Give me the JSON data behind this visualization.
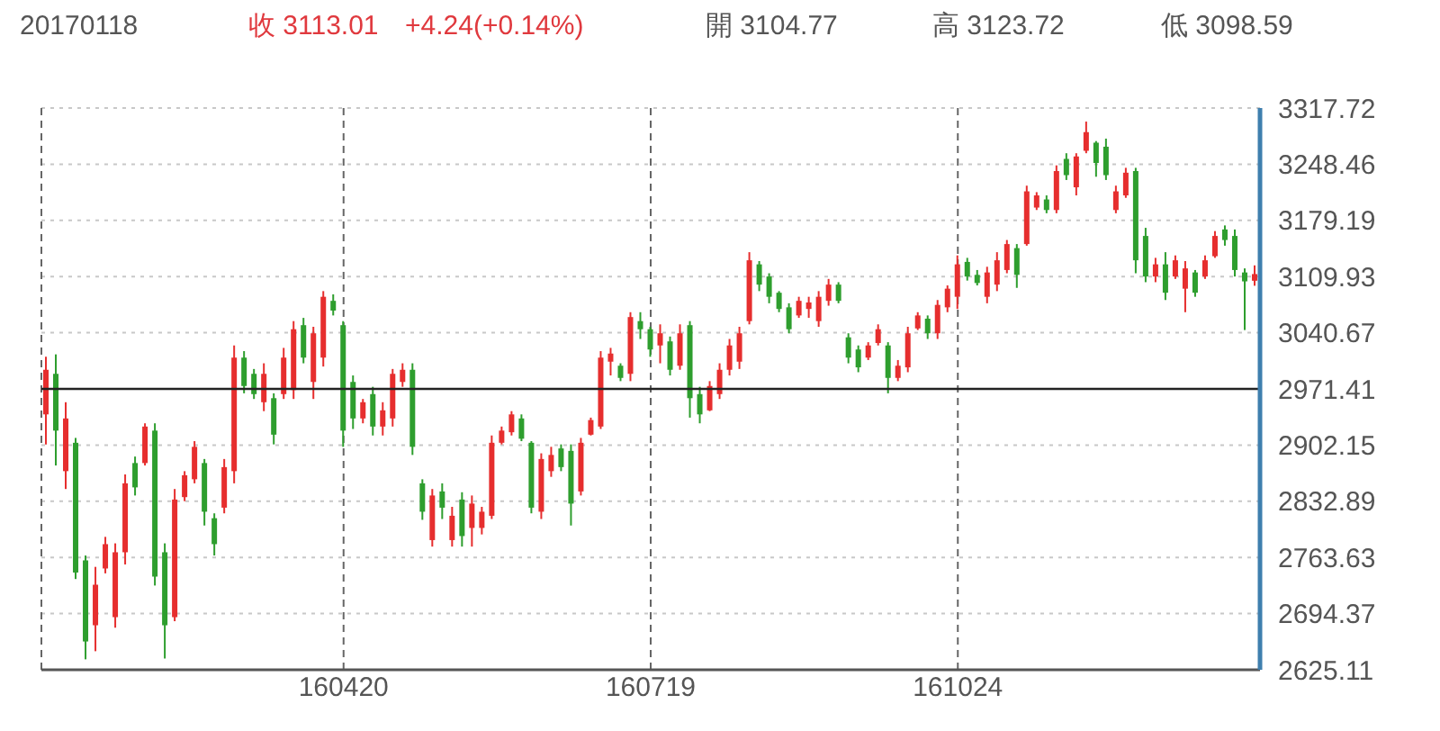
{
  "chart_data": {
    "type": "candlestick",
    "annotations": [
      "20170118",
      "收 3113.01",
      "+4.24(+0.14%)",
      "開 3104.77",
      "高 3123.72",
      "低 3098.59"
    ],
    "categories": [
      null,
      null,
      null,
      null,
      null,
      null,
      null,
      null,
      null,
      null,
      null,
      null,
      null,
      null,
      null,
      null,
      null,
      null,
      null,
      null,
      null,
      null,
      null,
      null,
      null,
      null,
      null,
      null,
      null,
      null,
      "160420",
      null,
      null,
      null,
      null,
      null,
      null,
      null,
      null,
      null,
      null,
      null,
      null,
      null,
      null,
      null,
      null,
      null,
      null,
      null,
      null,
      null,
      null,
      null,
      null,
      null,
      null,
      null,
      null,
      null,
      null,
      "160719",
      null,
      null,
      null,
      null,
      null,
      null,
      null,
      null,
      null,
      null,
      null,
      null,
      null,
      null,
      null,
      null,
      null,
      null,
      null,
      null,
      null,
      null,
      null,
      null,
      null,
      null,
      null,
      null,
      null,
      null,
      "161024",
      null,
      null,
      null,
      null,
      null,
      null,
      null,
      null,
      null,
      null,
      null,
      null,
      null,
      null,
      null,
      null,
      null,
      null,
      null,
      null,
      null,
      null,
      null,
      null,
      null,
      null,
      null,
      null,
      null,
      null
    ],
    "ohlc": [
      [
        2940,
        3011,
        2903,
        2995
      ],
      [
        2990,
        3014,
        2877,
        2920
      ],
      [
        2870,
        2955,
        2848,
        2935
      ],
      [
        2905,
        2911,
        2737,
        2745
      ],
      [
        2760,
        2766,
        2638,
        2660
      ],
      [
        2680,
        2752,
        2648,
        2730
      ],
      [
        2750,
        2789,
        2744,
        2780
      ],
      [
        2690,
        2781,
        2677,
        2770
      ],
      [
        2770,
        2866,
        2755,
        2855
      ],
      [
        2880,
        2888,
        2840,
        2850
      ],
      [
        2880,
        2929,
        2877,
        2925
      ],
      [
        2920,
        2929,
        2729,
        2740
      ],
      [
        2770,
        2781,
        2639,
        2680
      ],
      [
        2690,
        2848,
        2685,
        2835
      ],
      [
        2838,
        2870,
        2833,
        2865
      ],
      [
        2860,
        2907,
        2855,
        2900
      ],
      [
        2880,
        2885,
        2803,
        2820
      ],
      [
        2812,
        2818,
        2766,
        2780
      ],
      [
        2825,
        2885,
        2818,
        2875
      ],
      [
        2870,
        3025,
        2855,
        3010
      ],
      [
        3010,
        3018,
        2966,
        2975
      ],
      [
        2990,
        2996,
        2959,
        2965
      ],
      [
        2955,
        3003,
        2944,
        2990
      ],
      [
        2960,
        2966,
        2903,
        2915
      ],
      [
        2965,
        3022,
        2959,
        3010
      ],
      [
        2970,
        3055,
        2959,
        3045
      ],
      [
        3050,
        3059,
        3003,
        3010
      ],
      [
        2980,
        3048,
        2959,
        3040
      ],
      [
        3010,
        3092,
        2999,
        3085
      ],
      [
        3080,
        3088,
        3062,
        3068
      ],
      [
        3050,
        3055,
        2900,
        2920
      ],
      [
        2980,
        2988,
        2922,
        2935
      ],
      [
        2935,
        2959,
        2929,
        2955
      ],
      [
        2965,
        2974,
        2914,
        2925
      ],
      [
        2925,
        2955,
        2914,
        2945
      ],
      [
        2935,
        2996,
        2925,
        2990
      ],
      [
        2980,
        3003,
        2974,
        2995
      ],
      [
        2995,
        3003,
        2890,
        2900
      ],
      [
        2855,
        2860,
        2810,
        2820
      ],
      [
        2785,
        2848,
        2777,
        2840
      ],
      [
        2845,
        2855,
        2811,
        2825
      ],
      [
        2785,
        2826,
        2777,
        2815
      ],
      [
        2835,
        2844,
        2777,
        2790
      ],
      [
        2800,
        2840,
        2777,
        2830
      ],
      [
        2800,
        2826,
        2792,
        2820
      ],
      [
        2815,
        2914,
        2811,
        2905
      ],
      [
        2905,
        2925,
        2903,
        2920
      ],
      [
        2918,
        2944,
        2914,
        2940
      ],
      [
        2935,
        2940,
        2907,
        2910
      ],
      [
        2905,
        2907,
        2818,
        2825
      ],
      [
        2820,
        2892,
        2811,
        2885
      ],
      [
        2870,
        2900,
        2863,
        2890
      ],
      [
        2898,
        2903,
        2870,
        2875
      ],
      [
        2895,
        2903,
        2803,
        2830
      ],
      [
        2845,
        2911,
        2840,
        2905
      ],
      [
        2915,
        2936,
        2914,
        2933
      ],
      [
        2925,
        3018,
        2922,
        3010
      ],
      [
        3005,
        3022,
        2988,
        3015
      ],
      [
        3000,
        3003,
        2981,
        2985
      ],
      [
        2990,
        3066,
        2981,
        3060
      ],
      [
        3055,
        3066,
        3033,
        3045
      ],
      [
        3045,
        3048,
        3011,
        3020
      ],
      [
        3025,
        3051,
        3003,
        3040
      ],
      [
        3030,
        3036,
        2988,
        2995
      ],
      [
        3000,
        3051,
        2995,
        3040
      ],
      [
        3050,
        3055,
        2936,
        2960
      ],
      [
        2965,
        2974,
        2929,
        2940
      ],
      [
        2945,
        2981,
        2944,
        2975
      ],
      [
        2965,
        3003,
        2959,
        2995
      ],
      [
        2995,
        3033,
        2988,
        3025
      ],
      [
        3005,
        3048,
        2996,
        3040
      ],
      [
        3055,
        3140,
        3051,
        3130
      ],
      [
        3125,
        3129,
        3092,
        3100
      ],
      [
        3110,
        3114,
        3077,
        3085
      ],
      [
        3090,
        3092,
        3066,
        3070
      ],
      [
        3072,
        3077,
        3040,
        3045
      ],
      [
        3062,
        3085,
        3059,
        3080
      ],
      [
        3070,
        3085,
        3059,
        3078
      ],
      [
        3055,
        3092,
        3048,
        3085
      ],
      [
        3080,
        3107,
        3074,
        3100
      ],
      [
        3100,
        3103,
        3077,
        3080
      ],
      [
        3035,
        3040,
        3003,
        3010
      ],
      [
        3020,
        3025,
        2992,
        2998
      ],
      [
        3010,
        3029,
        3007,
        3025
      ],
      [
        3028,
        3051,
        3025,
        3045
      ],
      [
        3025,
        3029,
        2966,
        2985
      ],
      [
        2985,
        3007,
        2981,
        3000
      ],
      [
        2998,
        3048,
        2992,
        3040
      ],
      [
        3046,
        3066,
        3044,
        3062
      ],
      [
        3058,
        3062,
        3033,
        3040
      ],
      [
        3040,
        3081,
        3033,
        3075
      ],
      [
        3072,
        3099,
        3066,
        3095
      ],
      [
        3085,
        3136,
        3070,
        3125
      ],
      [
        3128,
        3133,
        3105,
        3110
      ],
      [
        3112,
        3118,
        3099,
        3102
      ],
      [
        3085,
        3122,
        3077,
        3115
      ],
      [
        3100,
        3140,
        3092,
        3130
      ],
      [
        3118,
        3155,
        3114,
        3150
      ],
      [
        3145,
        3150,
        3096,
        3112
      ],
      [
        3150,
        3222,
        3148,
        3215
      ],
      [
        3195,
        3214,
        3192,
        3210
      ],
      [
        3205,
        3210,
        3188,
        3192
      ],
      [
        3192,
        3247,
        3188,
        3240
      ],
      [
        3255,
        3262,
        3229,
        3235
      ],
      [
        3220,
        3262,
        3210,
        3258
      ],
      [
        3265,
        3301,
        3262,
        3288
      ],
      [
        3275,
        3277,
        3233,
        3250
      ],
      [
        3270,
        3280,
        3229,
        3235
      ],
      [
        3192,
        3222,
        3188,
        3215
      ],
      [
        3210,
        3244,
        3207,
        3238
      ],
      [
        3240,
        3244,
        3114,
        3130
      ],
      [
        3160,
        3170,
        3103,
        3110
      ],
      [
        3110,
        3133,
        3103,
        3125
      ],
      [
        3125,
        3140,
        3081,
        3090
      ],
      [
        3110,
        3136,
        3107,
        3130
      ],
      [
        3095,
        3129,
        3066,
        3120
      ],
      [
        3115,
        3118,
        3085,
        3090
      ],
      [
        3110,
        3136,
        3107,
        3130
      ],
      [
        3135,
        3166,
        3133,
        3160
      ],
      [
        3168,
        3173,
        3148,
        3155
      ],
      [
        3160,
        3168,
        3110,
        3118
      ],
      [
        3115,
        3120,
        3044,
        3104
      ],
      [
        3104.77,
        3123.72,
        3098.59,
        3113.01
      ]
    ],
    "colors": [
      "#e62e2e",
      "#2e9e2e",
      "#e62e2e",
      "#2e9e2e",
      "#2e9e2e",
      "#e62e2e",
      "#e62e2e",
      "#e62e2e",
      "#e62e2e",
      "#2e9e2e",
      "#e62e2e",
      "#2e9e2e",
      "#2e9e2e",
      "#e62e2e",
      "#e62e2e",
      "#e62e2e",
      "#2e9e2e",
      "#2e9e2e",
      "#e62e2e",
      "#e62e2e",
      "#2e9e2e",
      "#2e9e2e",
      "#e62e2e",
      "#2e9e2e",
      "#e62e2e",
      "#e62e2e",
      "#2e9e2e",
      "#e62e2e",
      "#e62e2e",
      "#2e9e2e",
      "#2e9e2e",
      "#2e9e2e",
      "#e62e2e",
      "#2e9e2e",
      "#e62e2e",
      "#e62e2e",
      "#e62e2e",
      "#2e9e2e",
      "#2e9e2e",
      "#e62e2e",
      "#2e9e2e",
      "#e62e2e",
      "#2e9e2e",
      "#e62e2e",
      "#e62e2e",
      "#e62e2e",
      "#e62e2e",
      "#e62e2e",
      "#2e9e2e",
      "#2e9e2e",
      "#e62e2e",
      "#e62e2e",
      "#2e9e2e",
      "#2e9e2e",
      "#e62e2e",
      "#e62e2e",
      "#e62e2e",
      "#e62e2e",
      "#2e9e2e",
      "#e62e2e",
      "#2e9e2e",
      "#2e9e2e",
      "#e62e2e",
      "#2e9e2e",
      "#e62e2e",
      "#2e9e2e",
      "#2e9e2e",
      "#e62e2e",
      "#e62e2e",
      "#e62e2e",
      "#e62e2e",
      "#e62e2e",
      "#2e9e2e",
      "#2e9e2e",
      "#2e9e2e",
      "#2e9e2e",
      "#e62e2e",
      "#e62e2e",
      "#e62e2e",
      "#e62e2e",
      "#2e9e2e",
      "#2e9e2e",
      "#2e9e2e",
      "#e62e2e",
      "#e62e2e",
      "#2e9e2e",
      "#e62e2e",
      "#e62e2e",
      "#e62e2e",
      "#2e9e2e",
      "#e62e2e",
      "#e62e2e",
      "#e62e2e",
      "#2e9e2e",
      "#2e9e2e",
      "#e62e2e",
      "#e62e2e",
      "#e62e2e",
      "#2e9e2e",
      "#e62e2e",
      "#e62e2e",
      "#2e9e2e",
      "#e62e2e",
      "#2e9e2e",
      "#e62e2e",
      "#e62e2e",
      "#2e9e2e",
      "#2e9e2e",
      "#e62e2e",
      "#e62e2e",
      "#2e9e2e",
      "#2e9e2e",
      "#e62e2e",
      "#2e9e2e",
      "#e62e2e",
      "#e62e2e",
      "#2e9e2e",
      "#e62e2e",
      "#e62e2e",
      "#2e9e2e",
      "#2e9e2e",
      "#2e9e2e",
      "#e62e2e"
    ],
    "ylim": [
      2625.11,
      3317.72
    ],
    "yticks": [
      2625.11,
      2694.37,
      2763.63,
      2832.89,
      2902.15,
      2971.41,
      3040.67,
      3109.93,
      3179.19,
      3248.46,
      3317.72
    ],
    "grid": true,
    "ref_lines": [
      {
        "axis": "y",
        "value": 2971.41
      }
    ]
  }
}
